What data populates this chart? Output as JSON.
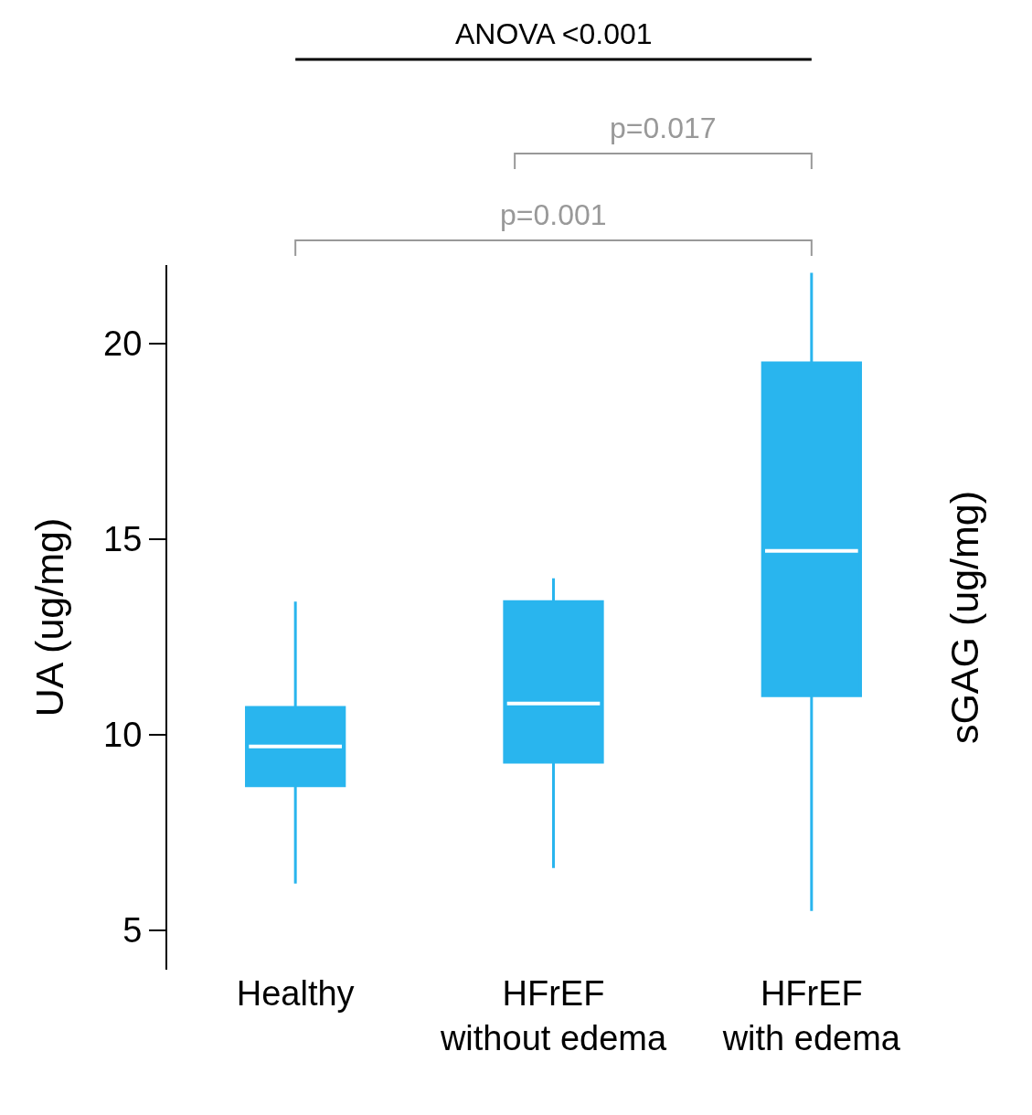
{
  "chart_data": {
    "type": "box",
    "categories": [
      "Healthy",
      "HFrEF\nwithout edema",
      "HFrEF\nwith edema"
    ],
    "color": "#29b5ee",
    "boxes": [
      {
        "low": 6.2,
        "q1": 8.7,
        "median": 9.7,
        "q3": 10.7,
        "high": 13.4
      },
      {
        "low": 6.6,
        "q1": 9.3,
        "median": 10.8,
        "q3": 13.4,
        "high": 14.0
      },
      {
        "low": 5.5,
        "q1": 11.0,
        "median": 14.7,
        "q3": 19.5,
        "high": 21.8
      }
    ],
    "ylabel": "UA (ug/mg)",
    "y2label": "sGAG (ug/mg)",
    "ylim": [
      4,
      22
    ],
    "yticks": [
      5,
      10,
      15,
      20
    ],
    "annotations": [
      "ANOVA <0.001",
      "p=0.017",
      "p=0.001"
    ]
  }
}
